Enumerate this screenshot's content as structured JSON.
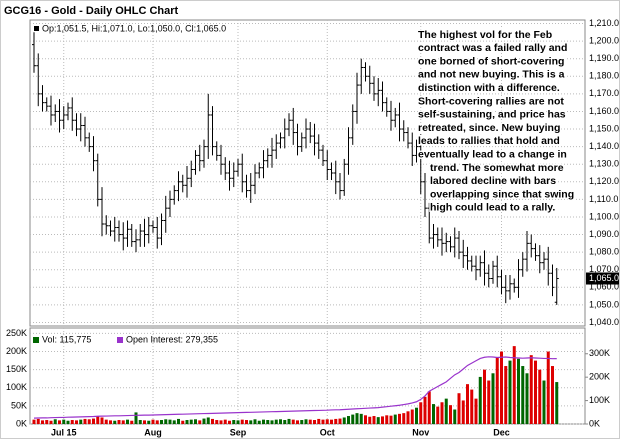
{
  "chart_data": [
    {
      "type": "ohlc",
      "title": "GCG16 - Gold - Daily OHLC Chart",
      "legend": "Op:1,051.5, Hi:1,071.0, Lo:1,050.0, Cl:1,065.0",
      "close_label": "1,065.0",
      "color": "#000000",
      "grid": true,
      "annotation": [
        "The highest vol for the Feb",
        "contract was a failed rally and",
        "one borned of short-covering",
        "and not new buying.  This is a",
        "distinction with a difference.",
        "Short-covering rallies are not",
        "self-sustaining, and price has",
        "retreated, since.  New buying",
        "leads to rallies that hold and",
        "eventually lead to a change in",
        "trend. The somewhat more",
        "labored decline with bars",
        "overlapping since that swing",
        "high could lead to a rally."
      ],
      "categories": [
        null,
        null,
        null,
        null,
        null,
        null,
        null,
        "Jul 15",
        null,
        null,
        null,
        null,
        null,
        null,
        null,
        null,
        null,
        null,
        null,
        null,
        null,
        null,
        null,
        null,
        null,
        null,
        null,
        null,
        "Aug",
        null,
        null,
        null,
        null,
        null,
        null,
        null,
        null,
        null,
        null,
        null,
        null,
        null,
        null,
        null,
        null,
        null,
        null,
        null,
        "Sep",
        null,
        null,
        null,
        null,
        null,
        null,
        null,
        null,
        null,
        null,
        null,
        null,
        null,
        null,
        null,
        null,
        null,
        null,
        null,
        null,
        "Oct",
        null,
        null,
        null,
        null,
        null,
        null,
        null,
        null,
        null,
        null,
        null,
        null,
        null,
        null,
        null,
        null,
        null,
        null,
        null,
        null,
        null,
        "Nov",
        null,
        null,
        null,
        null,
        null,
        null,
        null,
        null,
        null,
        null,
        null,
        null,
        null,
        null,
        null,
        null,
        null,
        null,
        "Dec",
        null,
        null,
        null,
        null,
        null,
        null,
        null,
        null,
        null,
        null,
        null,
        null,
        null
      ],
      "open": [
        1198,
        1186,
        1170,
        1165,
        1163,
        1158,
        1160,
        1155,
        1158,
        1162,
        1155,
        1150,
        1152,
        1145,
        1140,
        1132,
        1110,
        1096,
        1095,
        1092,
        1094,
        1090,
        1088,
        1093,
        1086,
        1087,
        1092,
        1090,
        1095,
        1094,
        1088,
        1098,
        1105,
        1110,
        1115,
        1120,
        1118,
        1122,
        1127,
        1135,
        1132,
        1140,
        1158,
        1140,
        1135,
        1130,
        1125,
        1122,
        1126,
        1130,
        1120,
        1115,
        1118,
        1125,
        1128,
        1132,
        1135,
        1138,
        1142,
        1145,
        1150,
        1155,
        1148,
        1140,
        1145,
        1150,
        1146,
        1142,
        1138,
        1132,
        1127,
        1125,
        1120,
        1115,
        1130,
        1145,
        1160,
        1175,
        1185,
        1180,
        1176,
        1170,
        1172,
        1165,
        1160,
        1155,
        1158,
        1150,
        1148,
        1142,
        1135,
        1140,
        1120,
        1105,
        1088,
        1090,
        1087,
        1085,
        1086,
        1083,
        1088,
        1080,
        1078,
        1075,
        1072,
        1070,
        1074,
        1068,
        1065,
        1072,
        1066,
        1060,
        1058,
        1062,
        1060,
        1070,
        1076,
        1085,
        1082,
        1078,
        1074,
        1076,
        1068,
        1051.5
      ],
      "high": [
        1205,
        1193,
        1175,
        1168,
        1169,
        1164,
        1167,
        1163,
        1165,
        1168,
        1159,
        1159,
        1157,
        1148,
        1146,
        1136,
        1117,
        1101,
        1098,
        1100,
        1098,
        1097,
        1098,
        1096,
        1093,
        1096,
        1099,
        1100,
        1098,
        1100,
        1102,
        1112,
        1115,
        1118,
        1126,
        1124,
        1129,
        1132,
        1138,
        1141,
        1144,
        1170,
        1163,
        1143,
        1141,
        1134,
        1132,
        1131,
        1133,
        1136,
        1124,
        1125,
        1130,
        1131,
        1138,
        1139,
        1145,
        1147,
        1148,
        1156,
        1159,
        1162,
        1153,
        1148,
        1156,
        1154,
        1153,
        1147,
        1141,
        1138,
        1131,
        1132,
        1125,
        1133,
        1151,
        1164,
        1182,
        1190,
        1188,
        1186,
        1180,
        1179,
        1177,
        1168,
        1166,
        1162,
        1165,
        1155,
        1151,
        1148,
        1144,
        1147,
        1125,
        1108,
        1096,
        1094,
        1094,
        1091,
        1089,
        1094,
        1092,
        1087,
        1083,
        1078,
        1078,
        1078,
        1081,
        1073,
        1075,
        1078,
        1070,
        1067,
        1067,
        1065,
        1076,
        1080,
        1092,
        1090,
        1085,
        1084,
        1080,
        1083,
        1073,
        1071
      ],
      "low": [
        1182,
        1163,
        1160,
        1160,
        1152,
        1154,
        1148,
        1150,
        1155,
        1149,
        1146,
        1143,
        1140,
        1137,
        1126,
        1106,
        1089,
        1090,
        1089,
        1086,
        1086,
        1081,
        1083,
        1083,
        1080,
        1083,
        1083,
        1085,
        1091,
        1082,
        1084,
        1091,
        1100,
        1107,
        1109,
        1114,
        1111,
        1117,
        1124,
        1126,
        1128,
        1133,
        1135,
        1132,
        1124,
        1121,
        1115,
        1117,
        1123,
        1114,
        1111,
        1108,
        1113,
        1122,
        1122,
        1128,
        1128,
        1133,
        1139,
        1139,
        1146,
        1141,
        1135,
        1137,
        1139,
        1142,
        1135,
        1133,
        1129,
        1121,
        1121,
        1113,
        1110,
        1112,
        1124,
        1141,
        1153,
        1170,
        1177,
        1170,
        1166,
        1163,
        1160,
        1157,
        1149,
        1151,
        1143,
        1143,
        1139,
        1129,
        1131,
        1113,
        1100,
        1085,
        1082,
        1083,
        1078,
        1080,
        1080,
        1077,
        1076,
        1071,
        1070,
        1069,
        1064,
        1066,
        1061,
        1060,
        1062,
        1060,
        1056,
        1051,
        1053,
        1057,
        1054,
        1066,
        1069,
        1077,
        1075,
        1068,
        1070,
        1061,
        1055,
        1050
      ],
      "close": [
        1186,
        1170,
        1165,
        1163,
        1158,
        1160,
        1155,
        1158,
        1162,
        1155,
        1150,
        1152,
        1145,
        1140,
        1132,
        1110,
        1096,
        1095,
        1092,
        1094,
        1090,
        1088,
        1093,
        1086,
        1087,
        1092,
        1090,
        1095,
        1094,
        1088,
        1098,
        1105,
        1110,
        1115,
        1120,
        1118,
        1122,
        1127,
        1135,
        1132,
        1140,
        1158,
        1140,
        1135,
        1130,
        1125,
        1122,
        1126,
        1130,
        1120,
        1115,
        1118,
        1125,
        1128,
        1132,
        1135,
        1138,
        1142,
        1145,
        1150,
        1155,
        1148,
        1140,
        1145,
        1150,
        1146,
        1142,
        1138,
        1132,
        1127,
        1125,
        1120,
        1115,
        1130,
        1145,
        1160,
        1175,
        1185,
        1180,
        1176,
        1170,
        1172,
        1165,
        1160,
        1155,
        1158,
        1150,
        1148,
        1142,
        1135,
        1140,
        1120,
        1105,
        1088,
        1090,
        1087,
        1085,
        1086,
        1083,
        1088,
        1080,
        1078,
        1075,
        1072,
        1070,
        1074,
        1068,
        1065,
        1072,
        1066,
        1060,
        1058,
        1062,
        1060,
        1070,
        1076,
        1085,
        1082,
        1078,
        1074,
        1076,
        1068,
        1060,
        1065
      ],
      "ylim": [
        1038,
        1212
      ],
      "yticks": [
        {
          "value": 1040,
          "label": "1,040.0"
        },
        {
          "value": 1050,
          "label": "1,050.0"
        },
        {
          "value": 1060,
          "label": "1,060.0"
        },
        {
          "value": 1070,
          "label": "1,070.0"
        },
        {
          "value": 1080,
          "label": "1,080.0"
        },
        {
          "value": 1090,
          "label": "1,090.0"
        },
        {
          "value": 1100,
          "label": "1,100.0"
        },
        {
          "value": 1110,
          "label": "1,110.0"
        },
        {
          "value": 1120,
          "label": "1,120.0"
        },
        {
          "value": 1130,
          "label": "1,130.0"
        },
        {
          "value": 1140,
          "label": "1,140.0"
        },
        {
          "value": 1150,
          "label": "1,150.0"
        },
        {
          "value": 1160,
          "label": "1,160.0"
        },
        {
          "value": 1170,
          "label": "1,170.0"
        },
        {
          "value": 1180,
          "label": "1,180.0"
        },
        {
          "value": 1190,
          "label": "1,190.0"
        },
        {
          "value": 1200,
          "label": "1,200.0"
        },
        {
          "value": 1210,
          "label": "1,210.0"
        }
      ]
    },
    {
      "type": "bar",
      "grid": true,
      "series": [
        {
          "name": "Vol: 115,775",
          "color": "#006600",
          "down_color": "#dd0000",
          "values": [
            12000,
            14000,
            10000,
            11000,
            9000,
            13000,
            10000,
            12000,
            9000,
            11000,
            10000,
            12000,
            14000,
            13000,
            15000,
            22000,
            18000,
            12000,
            10000,
            9000,
            11000,
            10000,
            12000,
            9000,
            32000,
            11000,
            10000,
            9000,
            12000,
            10000,
            11000,
            13000,
            12000,
            10000,
            14000,
            9000,
            11000,
            12000,
            13000,
            10000,
            15000,
            18000,
            14000,
            11000,
            10000,
            12000,
            9000,
            11000,
            10000,
            12000,
            11000,
            10000,
            13000,
            9000,
            12000,
            11000,
            10000,
            12000,
            13000,
            11000,
            14000,
            12000,
            10000,
            11000,
            13000,
            12000,
            11000,
            14000,
            12000,
            13000,
            12000,
            14000,
            15000,
            18000,
            22000,
            26000,
            30000,
            28000,
            24000,
            20000,
            22000,
            19000,
            21000,
            24000,
            23000,
            26000,
            28000,
            30000,
            35000,
            40000,
            45000,
            60000,
            75000,
            90000,
            55000,
            48000,
            60000,
            70000,
            52000,
            40000,
            85000,
            65000,
            110000,
            95000,
            70000,
            130000,
            150000,
            120000,
            140000,
            185000,
            200000,
            160000,
            175000,
            215000,
            180000,
            160000,
            140000,
            190000,
            175000,
            150000,
            120000,
            200000,
            160000,
            115775
          ]
        },
        {
          "name": "Open Interest: 279,355",
          "color": "#9933cc",
          "type": "line",
          "axis": "y2",
          "values": [
            25000,
            25500,
            26000,
            26000,
            27000,
            27500,
            28000,
            28000,
            29000,
            29500,
            30000,
            30500,
            31000,
            31500,
            32000,
            33000,
            33500,
            34000,
            34500,
            35000,
            35000,
            35500,
            36000,
            36500,
            37000,
            37500,
            38000,
            38000,
            38500,
            39000,
            39500,
            40000,
            40500,
            41000,
            41500,
            42000,
            42500,
            43000,
            43500,
            44000,
            44500,
            45000,
            45500,
            46000,
            46500,
            47000,
            47500,
            48000,
            48500,
            49000,
            49500,
            50000,
            50500,
            51000,
            51500,
            52000,
            52500,
            53000,
            53500,
            54000,
            54500,
            55000,
            55500,
            56000,
            56500,
            57000,
            57500,
            58000,
            58500,
            59000,
            60000,
            60500,
            61000,
            62000,
            63000,
            64000,
            65000,
            66000,
            67000,
            68000,
            69000,
            70000,
            72000,
            74000,
            76000,
            78000,
            80000,
            83000,
            86000,
            90000,
            95000,
            105000,
            120000,
            140000,
            150000,
            160000,
            170000,
            180000,
            195000,
            210000,
            220000,
            235000,
            250000,
            260000,
            270000,
            280000,
            285000,
            287000,
            286000,
            284000,
            285000,
            286000,
            284000,
            283000,
            282000,
            281000,
            282000,
            283000,
            282000,
            281000,
            280000,
            280000,
            279000,
            279355
          ]
        }
      ],
      "ylim": [
        0,
        265000
      ],
      "yticks": [
        {
          "value": 0,
          "label": "0K"
        },
        {
          "value": 50000,
          "label": "50K"
        },
        {
          "value": 100000,
          "label": "100K"
        },
        {
          "value": 150000,
          "label": "150K"
        },
        {
          "value": 200000,
          "label": "200K"
        },
        {
          "value": 250000,
          "label": "250K"
        }
      ],
      "y2lim": [
        0,
        410000
      ],
      "y2ticks": [
        {
          "value": 0,
          "label": "0K"
        },
        {
          "value": 100000,
          "label": "100K"
        },
        {
          "value": 200000,
          "label": "200K"
        },
        {
          "value": 300000,
          "label": "300K"
        }
      ]
    }
  ]
}
